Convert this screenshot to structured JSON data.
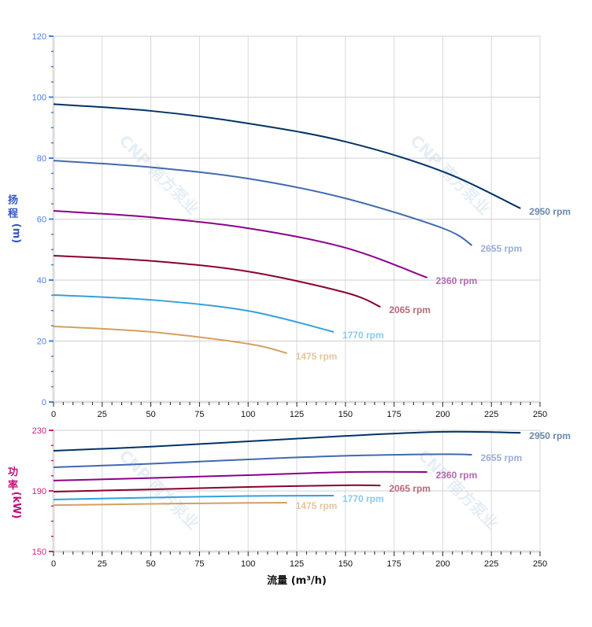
{
  "watermark": "CNP 南方泵业",
  "chart_data": [
    {
      "type": "line",
      "ylabel": [
        "扬",
        "程",
        "(m)"
      ],
      "xlim": [
        0,
        250
      ],
      "ylim": [
        0,
        120
      ],
      "xticks": [
        0,
        25,
        50,
        75,
        100,
        125,
        150,
        175,
        200,
        225,
        250
      ],
      "yticks": [
        0,
        20,
        40,
        60,
        80,
        100,
        120
      ],
      "grid": true,
      "axis_color": "#4a7fe0",
      "series": [
        {
          "name": "2950 rpm",
          "color": "#003366",
          "label_color": "#6a8aa8",
          "x": [
            0,
            50,
            100,
            150,
            200,
            240
          ],
          "y": [
            97.7,
            95.5,
            91.4,
            85.4,
            75.6,
            63.5
          ]
        },
        {
          "name": "2655 rpm",
          "color": "#4169b0",
          "label_color": "#9aaed6",
          "x": [
            0,
            50,
            100,
            150,
            200,
            215
          ],
          "y": [
            79.2,
            77.0,
            73.3,
            66.8,
            57.0,
            51.4
          ]
        },
        {
          "name": "2360 rpm",
          "color": "#8b008b",
          "label_color": "#b06ab0",
          "x": [
            0,
            50,
            100,
            150,
            192
          ],
          "y": [
            62.7,
            60.6,
            57.0,
            50.6,
            40.8
          ]
        },
        {
          "name": "2065 rpm",
          "color": "#8b0030",
          "label_color": "#b86a7a",
          "x": [
            0,
            50,
            100,
            150,
            168
          ],
          "y": [
            48.0,
            46.3,
            42.8,
            35.9,
            31.2
          ]
        },
        {
          "name": "1770 rpm",
          "color": "#33a0dd",
          "label_color": "#8cc8ee",
          "x": [
            0,
            50,
            100,
            144
          ],
          "y": [
            35.1,
            33.5,
            29.9,
            23.0
          ]
        },
        {
          "name": "1475 rpm",
          "color": "#d4a060",
          "label_color": "#e6c49a",
          "x": [
            0,
            50,
            100,
            120
          ],
          "y": [
            24.8,
            23.0,
            19.1,
            16.0
          ]
        }
      ]
    },
    {
      "type": "line",
      "ylabel": [
        "功",
        "率",
        "(kW)"
      ],
      "xlabel": "流量 (m³/h)",
      "xlim": [
        0,
        250
      ],
      "ylim": [
        150,
        230
      ],
      "xticks": [
        0,
        25,
        50,
        75,
        100,
        125,
        150,
        175,
        200,
        225,
        250
      ],
      "yticks": [
        150,
        190,
        230
      ],
      "grid": true,
      "axis_color": "#d0207a",
      "series": [
        {
          "name": "2950 rpm",
          "color": "#003366",
          "label_color": "#6a8aa8",
          "x": [
            0,
            50,
            100,
            150,
            200,
            240
          ],
          "y": [
            216.5,
            219.2,
            222.7,
            226.3,
            229.0,
            228.4
          ]
        },
        {
          "name": "2655 rpm",
          "color": "#4169b0",
          "label_color": "#9aaed6",
          "x": [
            0,
            50,
            100,
            150,
            200,
            215
          ],
          "y": [
            205.6,
            207.9,
            210.8,
            213.2,
            214.2,
            213.9
          ]
        },
        {
          "name": "2360 rpm",
          "color": "#8b008b",
          "label_color": "#b06ab0",
          "x": [
            0,
            50,
            100,
            150,
            192
          ],
          "y": [
            196.8,
            198.5,
            200.4,
            202.4,
            202.5
          ]
        },
        {
          "name": "2065 rpm",
          "color": "#8b0030",
          "label_color": "#b86a7a",
          "x": [
            0,
            50,
            100,
            150,
            168
          ],
          "y": [
            189.5,
            191.0,
            192.6,
            193.7,
            193.6
          ]
        },
        {
          "name": "1770 rpm",
          "color": "#33a0dd",
          "label_color": "#8cc8ee",
          "x": [
            0,
            50,
            100,
            144
          ],
          "y": [
            184.3,
            185.6,
            186.6,
            186.9
          ]
        },
        {
          "name": "1475 rpm",
          "color": "#d4a060",
          "label_color": "#e6c49a",
          "x": [
            0,
            50,
            100,
            120
          ],
          "y": [
            180.6,
            181.4,
            182.1,
            182.2
          ]
        }
      ]
    }
  ]
}
